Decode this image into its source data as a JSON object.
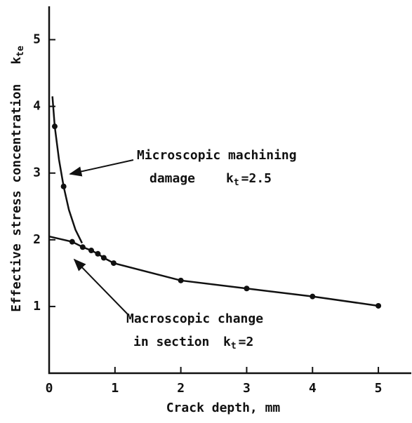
{
  "chart_data": {
    "type": "line",
    "xlabel": "Crack depth, mm",
    "ylabel": "Effective stress concentration",
    "ylabel_symbol": "k",
    "ylabel_subscript": "te",
    "xlim": [
      0,
      5.5
    ],
    "ylim": [
      0,
      5.5
    ],
    "xticks": [
      0,
      1,
      2,
      3,
      4,
      5
    ],
    "yticks": [
      1,
      2,
      3,
      4,
      5
    ],
    "series": [
      {
        "x": [
          0.05,
          0.085,
          0.15,
          0.22,
          0.3,
          0.4,
          0.5
        ],
        "values": [
          4.15,
          3.7,
          3.2,
          2.8,
          2.45,
          2.15,
          1.95
        ],
        "color": "#111111",
        "markers": false
      },
      {
        "x": [
          0,
          0.35,
          0.51,
          0.64,
          0.74,
          0.83,
          0.98,
          2,
          3,
          4,
          5
        ],
        "values": [
          2.05,
          1.97,
          1.89,
          1.84,
          1.79,
          1.73,
          1.65,
          1.39,
          1.27,
          1.15,
          1.01
        ],
        "color": "#111111",
        "markers": false
      },
      {
        "x": [
          0.085,
          0.22,
          0.35,
          0.51,
          0.64,
          0.74,
          0.83,
          0.98,
          2,
          3,
          4,
          5
        ],
        "values": [
          3.7,
          2.8,
          1.97,
          1.89,
          1.84,
          1.79,
          1.73,
          1.65,
          1.39,
          1.27,
          1.15,
          1.01
        ],
        "color": "#111111",
        "markers": true
      }
    ],
    "annotations": [
      {
        "lines": [
          "Microscopic machining",
          "damage"
        ],
        "symbol": "k",
        "subscript": "t",
        "relation": "=2.5"
      },
      {
        "lines": [
          "Macroscopic change",
          "in section"
        ],
        "symbol": "k",
        "subscript": "t",
        "relation": "=2"
      }
    ]
  }
}
